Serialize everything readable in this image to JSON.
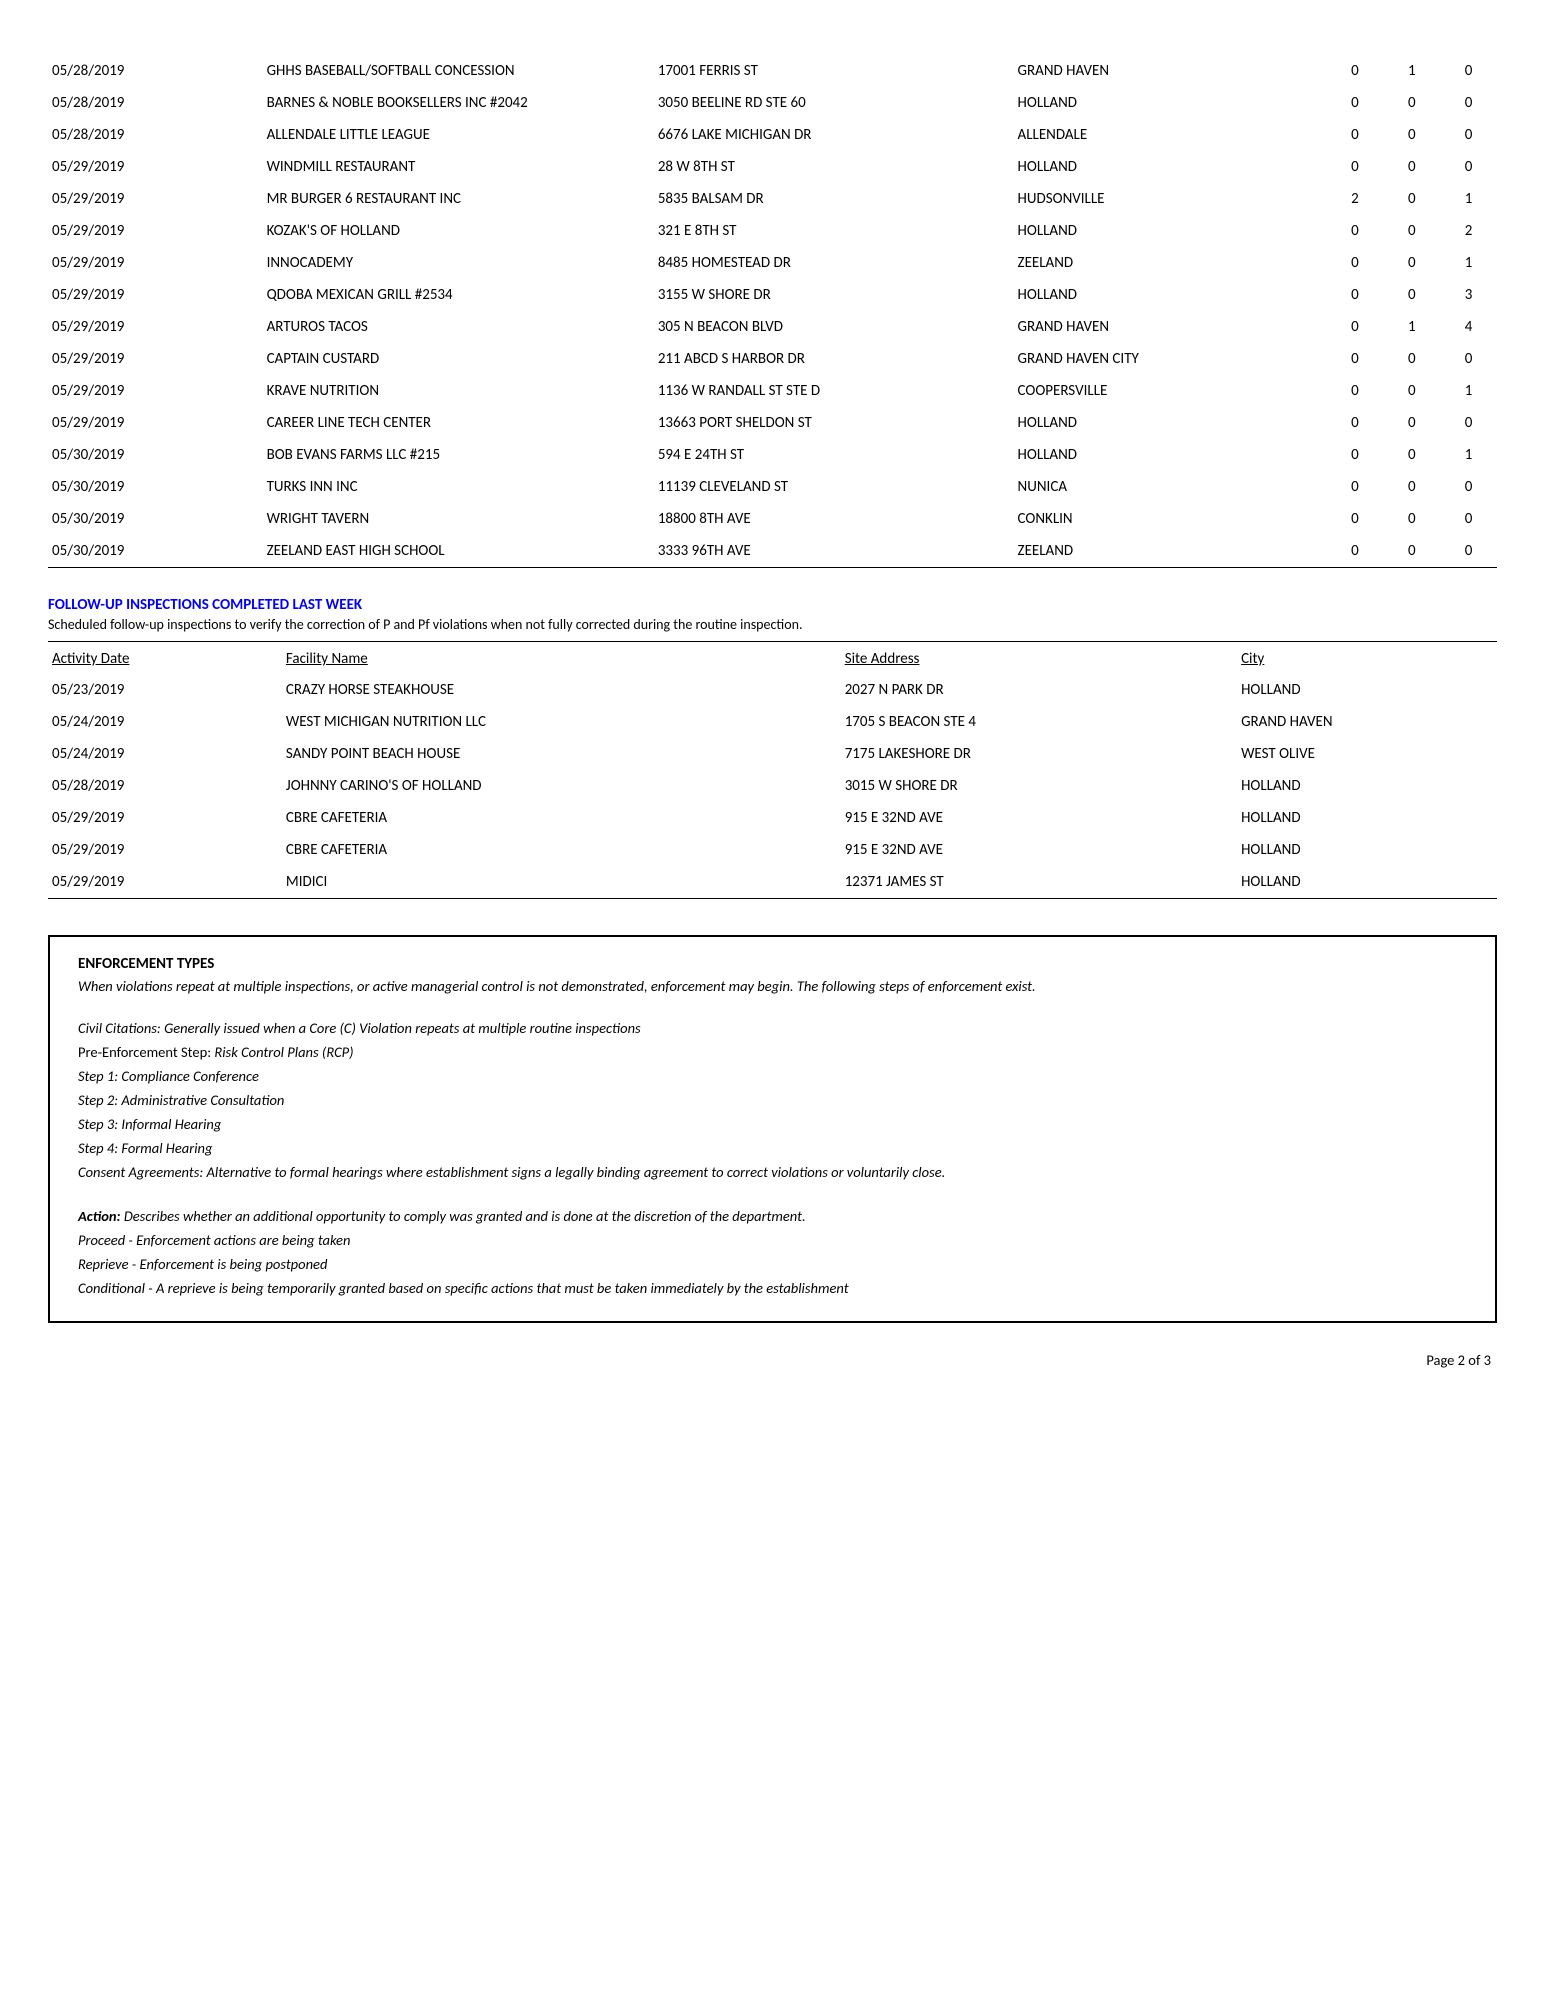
{
  "inspections": [
    {
      "date": "05/28/2019",
      "facility": "GHHS BASEBALL/SOFTBALL CONCESSION",
      "address": "17001 FERRIS ST",
      "city": "GRAND HAVEN",
      "p": "0",
      "pf": "1",
      "c": "0"
    },
    {
      "date": "05/28/2019",
      "facility": "BARNES & NOBLE BOOKSELLERS INC #2042",
      "address": "3050 BEELINE RD STE 60",
      "city": "HOLLAND",
      "p": "0",
      "pf": "0",
      "c": "0"
    },
    {
      "date": "05/28/2019",
      "facility": "ALLENDALE LITTLE LEAGUE",
      "address": "6676 LAKE MICHIGAN DR",
      "city": "ALLENDALE",
      "p": "0",
      "pf": "0",
      "c": "0"
    },
    {
      "date": "05/29/2019",
      "facility": "WINDMILL RESTAURANT",
      "address": "28 W 8TH ST",
      "city": "HOLLAND",
      "p": "0",
      "pf": "0",
      "c": "0"
    },
    {
      "date": "05/29/2019",
      "facility": "MR BURGER 6 RESTAURANT INC",
      "address": "5835 BALSAM DR",
      "city": "HUDSONVILLE",
      "p": "2",
      "pf": "0",
      "c": "1"
    },
    {
      "date": "05/29/2019",
      "facility": "KOZAK'S OF HOLLAND",
      "address": "321 E 8TH ST",
      "city": "HOLLAND",
      "p": "0",
      "pf": "0",
      "c": "2"
    },
    {
      "date": "05/29/2019",
      "facility": "INNOCADEMY",
      "address": "8485 HOMESTEAD DR",
      "city": "ZEELAND",
      "p": "0",
      "pf": "0",
      "c": "1"
    },
    {
      "date": "05/29/2019",
      "facility": "QDOBA MEXICAN GRILL #2534",
      "address": "3155 W SHORE DR",
      "city": "HOLLAND",
      "p": "0",
      "pf": "0",
      "c": "3"
    },
    {
      "date": "05/29/2019",
      "facility": "ARTUROS TACOS",
      "address": "305 N BEACON BLVD",
      "city": "GRAND HAVEN",
      "p": "0",
      "pf": "1",
      "c": "4"
    },
    {
      "date": "05/29/2019",
      "facility": "CAPTAIN CUSTARD",
      "address": "211 ABCD S HARBOR DR",
      "city": "GRAND HAVEN CITY",
      "p": "0",
      "pf": "0",
      "c": "0"
    },
    {
      "date": "05/29/2019",
      "facility": "KRAVE NUTRITION",
      "address": "1136 W RANDALL ST STE D",
      "city": "COOPERSVILLE",
      "p": "0",
      "pf": "0",
      "c": "1"
    },
    {
      "date": "05/29/2019",
      "facility": "CAREER LINE TECH CENTER",
      "address": "13663 PORT SHELDON ST",
      "city": "HOLLAND",
      "p": "0",
      "pf": "0",
      "c": "0"
    },
    {
      "date": "05/30/2019",
      "facility": "BOB EVANS FARMS LLC #215",
      "address": "594 E 24TH ST",
      "city": "HOLLAND",
      "p": "0",
      "pf": "0",
      "c": "1"
    },
    {
      "date": "05/30/2019",
      "facility": "TURKS INN INC",
      "address": "11139 CLEVELAND ST",
      "city": "NUNICA",
      "p": "0",
      "pf": "0",
      "c": "0"
    },
    {
      "date": "05/30/2019",
      "facility": "WRIGHT TAVERN",
      "address": "18800 8TH AVE",
      "city": "CONKLIN",
      "p": "0",
      "pf": "0",
      "c": "0"
    },
    {
      "date": "05/30/2019",
      "facility": "ZEELAND EAST HIGH SCHOOL",
      "address": "3333 96TH AVE",
      "city": "ZEELAND",
      "p": "0",
      "pf": "0",
      "c": "0"
    }
  ],
  "followup": {
    "heading": "FOLLOW-UP INSPECTIONS COMPLETED LAST WEEK",
    "subtext": "Scheduled follow-up inspections to verify the correction of P and Pf violations when not fully corrected during the routine inspection.",
    "headers": {
      "date": "Activity Date",
      "facility": "Facility Name",
      "address": "Site Address",
      "city": "City"
    },
    "rows": [
      {
        "date": "05/23/2019",
        "facility": "CRAZY HORSE STEAKHOUSE",
        "address": "2027 N PARK DR",
        "city": "HOLLAND"
      },
      {
        "date": "05/24/2019",
        "facility": "WEST MICHIGAN NUTRITION LLC",
        "address": "1705 S BEACON STE 4",
        "city": "GRAND HAVEN"
      },
      {
        "date": "05/24/2019",
        "facility": "SANDY POINT BEACH HOUSE",
        "address": "7175 LAKESHORE DR",
        "city": "WEST OLIVE"
      },
      {
        "date": "05/28/2019",
        "facility": "JOHNNY CARINO'S OF HOLLAND",
        "address": "3015 W SHORE DR",
        "city": "HOLLAND"
      },
      {
        "date": "05/29/2019",
        "facility": "CBRE CAFETERIA",
        "address": "915 E 32ND AVE",
        "city": "HOLLAND"
      },
      {
        "date": "05/29/2019",
        "facility": "CBRE CAFETERIA",
        "address": "915 E 32ND AVE",
        "city": "HOLLAND"
      },
      {
        "date": "05/29/2019",
        "facility": "MIDICI",
        "address": "12371 JAMES ST",
        "city": "HOLLAND"
      }
    ]
  },
  "enforcement": {
    "heading": "ENFORCEMENT TYPES",
    "intro": "When violations repeat at multiple inspections, or active managerial control is not demonstrated, enforcement may begin. The following steps of enforcement exist.",
    "civil": "Civil Citations: Generally issued when a Core (C) Violation repeats at multiple routine inspections",
    "preenforce_label": "Pre-Enforcement Step:",
    "preenforce_text": " Risk Control Plans (RCP)",
    "step1": "Step 1: Compliance Conference",
    "step2": "Step 2: Administrative Consultation",
    "step3": "Step 3: Informal Hearing",
    "step4": "Step 4: Formal Hearing",
    "consent": "Consent Agreements: Alternative to formal hearings where establishment signs a legally binding agreement to correct violations or voluntarily close.",
    "action_label": "Action:",
    "action_text": " Describes whether an additional opportunity to comply was granted and is done at the discretion of the department.",
    "proceed": "Proceed - Enforcement actions are being taken",
    "reprieve": "Reprieve - Enforcement is being postponed",
    "conditional": "Conditional - A reprieve is being temporarily granted based on specific actions that must be taken immediately by the establishment"
  },
  "footer": "Page 2 of 3"
}
